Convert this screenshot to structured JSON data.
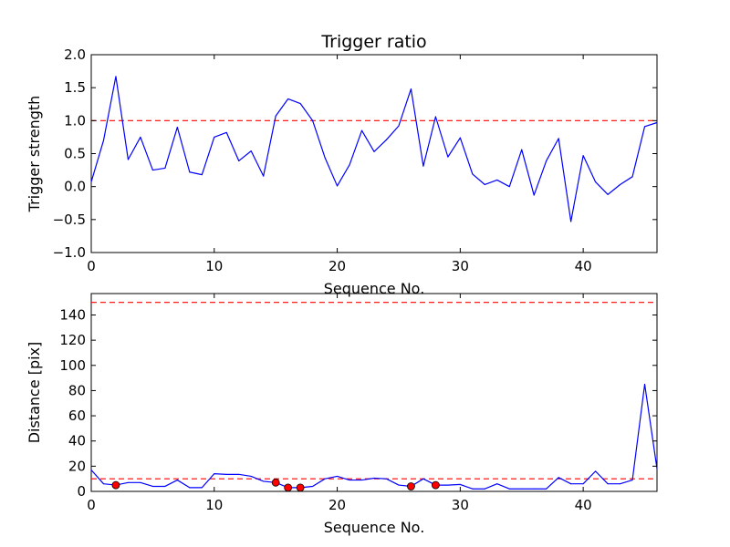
{
  "chart_data": [
    {
      "type": "line",
      "title": "Trigger ratio",
      "xlabel": "Sequence No.",
      "ylabel": "Trigger strength",
      "xlim": [
        0,
        46
      ],
      "ylim": [
        -1.0,
        2.0
      ],
      "x_ticks": [
        0,
        10,
        20,
        30,
        40
      ],
      "y_ticks": [
        -1.0,
        -0.5,
        0.0,
        0.5,
        1.0,
        1.5,
        2.0
      ],
      "x_tick_labels": [
        "0",
        "10",
        "20",
        "30",
        "40"
      ],
      "y_tick_labels": [
        "−1.0",
        "−0.5",
        "0.0",
        "0.5",
        "1.0",
        "1.5",
        "2.0"
      ],
      "series": [
        {
          "name": "trigger strength",
          "color": "#0000ff",
          "x": [
            0,
            1,
            2,
            3,
            4,
            5,
            6,
            7,
            8,
            9,
            10,
            11,
            12,
            13,
            14,
            15,
            16,
            17,
            18,
            19,
            20,
            21,
            22,
            23,
            24,
            25,
            26,
            27,
            28,
            29,
            30,
            31,
            32,
            33,
            34,
            35,
            36,
            37,
            38,
            39,
            40,
            41,
            42,
            43,
            44,
            45,
            46
          ],
          "y": [
            0.07,
            0.7,
            1.67,
            0.41,
            0.75,
            0.25,
            0.28,
            0.9,
            0.22,
            0.18,
            0.75,
            0.82,
            0.39,
            0.54,
            0.16,
            1.07,
            1.33,
            1.26,
            1.0,
            0.44,
            0.01,
            0.33,
            0.85,
            0.53,
            0.71,
            0.92,
            1.48,
            0.31,
            1.06,
            0.45,
            0.74,
            0.19,
            0.03,
            0.1,
            0.0,
            0.56,
            -0.13,
            0.39,
            0.73,
            -0.53,
            0.47,
            0.07,
            -0.12,
            0.03,
            0.15,
            0.91,
            0.97
          ]
        }
      ],
      "thresholds": [
        {
          "value": 1.0,
          "color": "#ff0000",
          "style": "dashed"
        }
      ]
    },
    {
      "type": "line",
      "title": "",
      "xlabel": "Sequence No.",
      "ylabel": "Distance [pix]",
      "xlim": [
        0,
        46
      ],
      "ylim": [
        0,
        157
      ],
      "x_ticks": [
        0,
        10,
        20,
        30,
        40
      ],
      "y_ticks": [
        0,
        20,
        40,
        60,
        80,
        100,
        120,
        140
      ],
      "x_tick_labels": [
        "0",
        "10",
        "20",
        "30",
        "40"
      ],
      "y_tick_labels": [
        "0",
        "20",
        "40",
        "60",
        "80",
        "100",
        "120",
        "140"
      ],
      "series": [
        {
          "name": "distance",
          "color": "#0000ff",
          "x": [
            0,
            1,
            2,
            3,
            4,
            5,
            6,
            7,
            8,
            9,
            10,
            11,
            12,
            13,
            14,
            15,
            16,
            17,
            18,
            19,
            20,
            21,
            22,
            23,
            24,
            25,
            26,
            27,
            28,
            29,
            30,
            31,
            32,
            33,
            34,
            35,
            36,
            37,
            38,
            39,
            40,
            41,
            42,
            43,
            44,
            45,
            46
          ],
          "y": [
            17,
            6,
            5,
            7,
            7,
            4,
            4,
            9,
            3,
            3,
            14,
            13.5,
            13.5,
            12,
            8,
            7,
            3,
            3,
            4,
            10,
            12,
            9,
            9,
            10.5,
            10,
            5,
            4,
            10,
            5,
            5,
            5.5,
            2,
            2,
            6,
            2,
            2,
            2,
            2,
            11,
            6,
            6,
            16,
            6,
            6,
            9,
            85,
            18
          ]
        }
      ],
      "markers": {
        "color": "#ff0000",
        "points": [
          {
            "x": 2,
            "y": 5
          },
          {
            "x": 15,
            "y": 7
          },
          {
            "x": 16,
            "y": 3
          },
          {
            "x": 17,
            "y": 3
          },
          {
            "x": 26,
            "y": 4
          },
          {
            "x": 28,
            "y": 5
          }
        ]
      },
      "thresholds": [
        {
          "value": 150,
          "color": "#ff0000",
          "style": "dashed"
        },
        {
          "value": 10,
          "color": "#ff0000",
          "style": "dashed"
        }
      ]
    }
  ]
}
